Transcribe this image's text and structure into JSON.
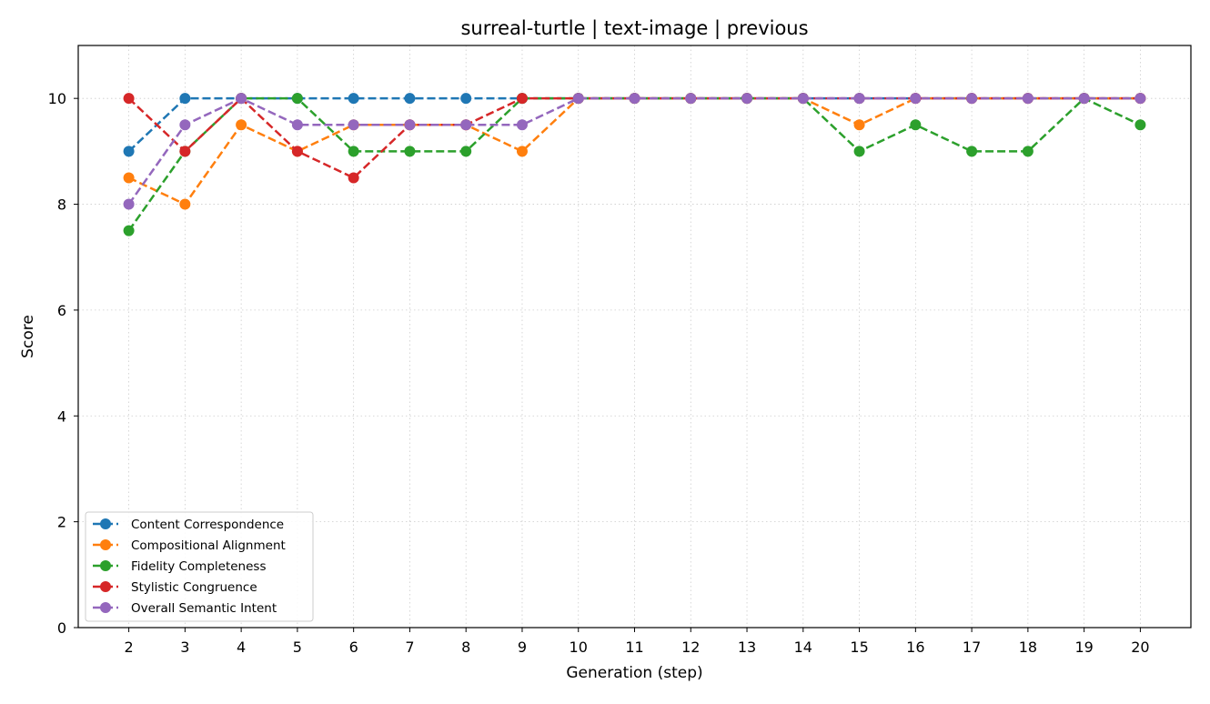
{
  "chart_data": {
    "type": "line",
    "title": "surreal-turtle | text-image | previous",
    "xlabel": "Generation (step)",
    "ylabel": "Score",
    "x": [
      2,
      3,
      4,
      5,
      6,
      7,
      8,
      9,
      10,
      11,
      12,
      13,
      14,
      15,
      16,
      17,
      18,
      19,
      20
    ],
    "xlim": [
      1.1,
      20.9
    ],
    "ylim": [
      0,
      11
    ],
    "yticks": [
      0,
      2,
      4,
      6,
      8,
      10
    ],
    "grid": true,
    "legend_position": "lower-left",
    "series": [
      {
        "name": "Content Correspondence",
        "color": "#1f77b4",
        "values": [
          9,
          10,
          10,
          10,
          10,
          10,
          10,
          10,
          10,
          10,
          10,
          10,
          10,
          10,
          10,
          10,
          10,
          10,
          10
        ]
      },
      {
        "name": "Compositional Alignment",
        "color": "#ff7f0e",
        "values": [
          8.5,
          8,
          9.5,
          9,
          9.5,
          9.5,
          9.5,
          9,
          10,
          10,
          10,
          10,
          10,
          9.5,
          10,
          10,
          10,
          10,
          10
        ]
      },
      {
        "name": "Fidelity Completeness",
        "color": "#2ca02c",
        "values": [
          7.5,
          9,
          10,
          10,
          9,
          9,
          9,
          10,
          10,
          10,
          10,
          10,
          10,
          9,
          9.5,
          9,
          9,
          10,
          9.5
        ]
      },
      {
        "name": "Stylistic Congruence",
        "color": "#d62728",
        "values": [
          10,
          9,
          10,
          9,
          8.5,
          9.5,
          9.5,
          10,
          10,
          10,
          10,
          10,
          10,
          10,
          10,
          10,
          10,
          10,
          10
        ]
      },
      {
        "name": "Overall Semantic Intent",
        "color": "#9467bd",
        "values": [
          8,
          9.5,
          10,
          9.5,
          9.5,
          9.5,
          9.5,
          9.5,
          10,
          10,
          10,
          10,
          10,
          10,
          10,
          10,
          10,
          10,
          10
        ]
      }
    ]
  }
}
